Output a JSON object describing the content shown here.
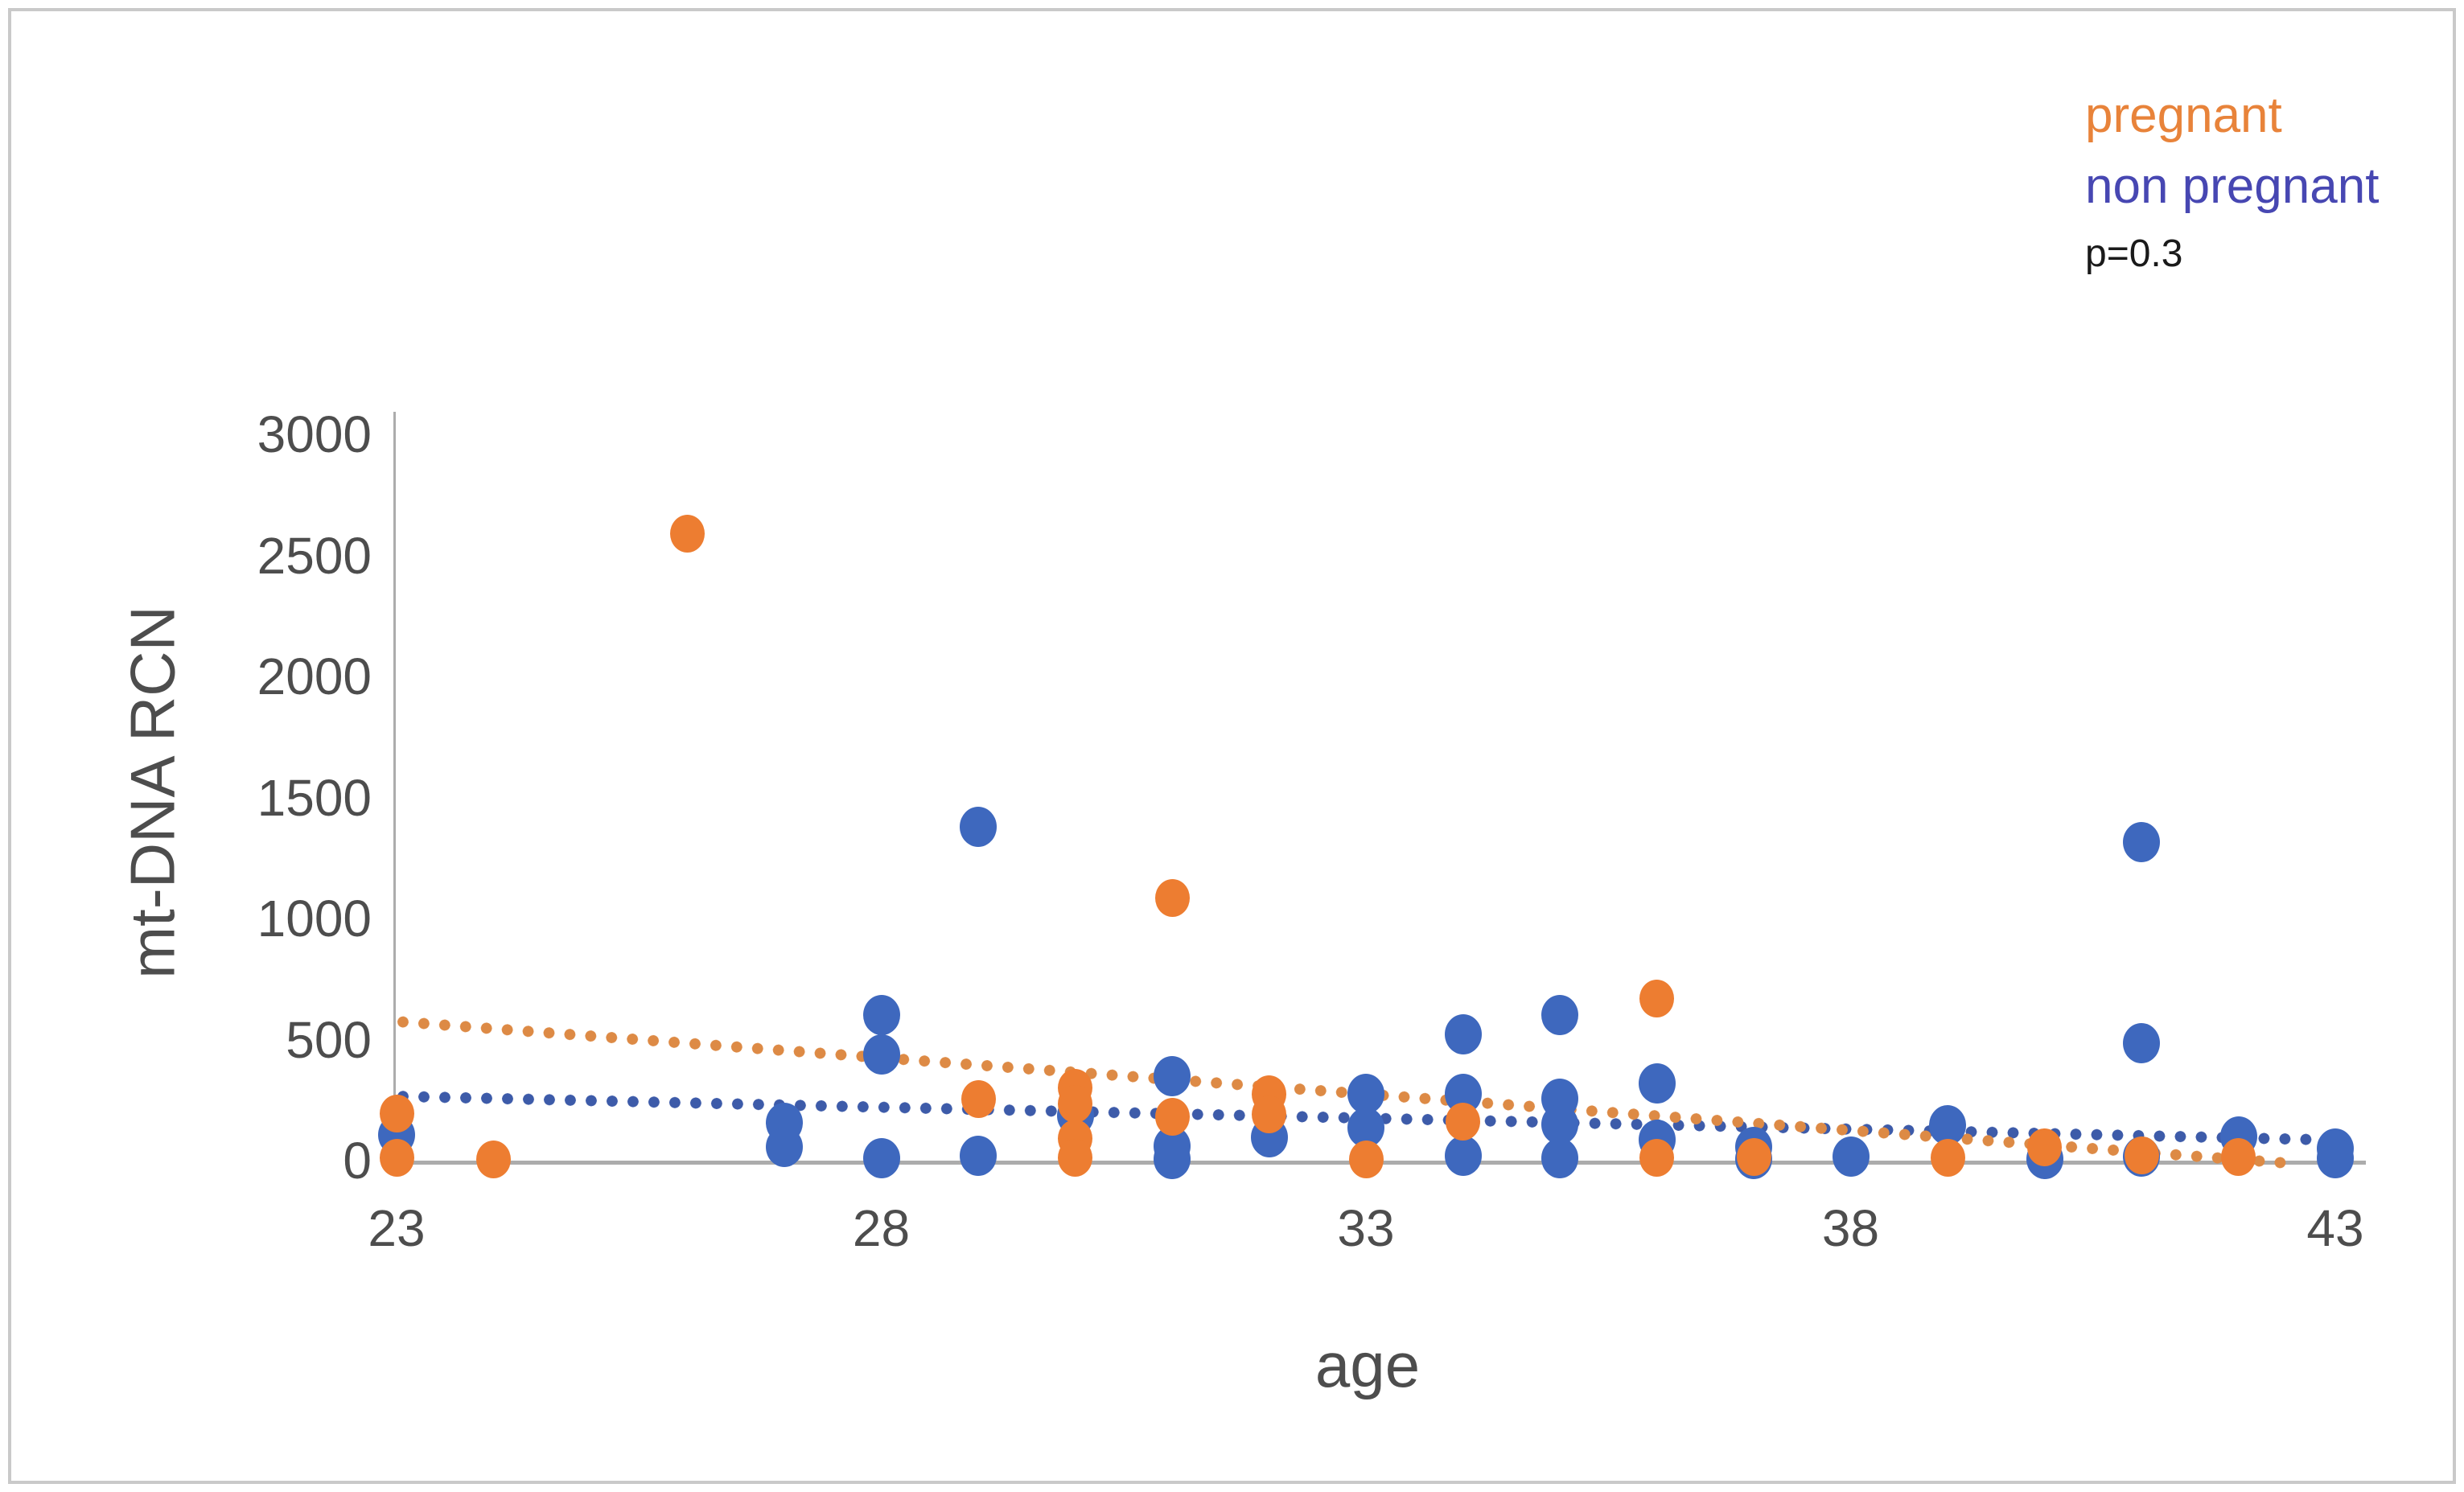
{
  "page": {
    "background": "#ffffff",
    "frame_border_color": "#c9c9c9",
    "axis_line_color": "#acacac",
    "tick_text_color": "#4d4d4d"
  },
  "legend": {
    "items": [
      {
        "label": "pregnant",
        "color": "#E8833A"
      },
      {
        "label": "non pregnant",
        "color": "#4747B2"
      }
    ],
    "p_value": "p=0.3",
    "p_value_color": "#1a1a1a"
  },
  "chart_data": {
    "type": "scatter",
    "title": "",
    "xlabel": "age",
    "ylabel": "mt-DNA RCN",
    "xlim": [
      23,
      43
    ],
    "ylim": [
      0,
      3000
    ],
    "x_ticks": [
      23,
      28,
      33,
      38,
      43
    ],
    "y_ticks": [
      0,
      500,
      1000,
      1500,
      2000,
      2500,
      3000
    ],
    "grid": false,
    "legend_position": "top-right",
    "annotation": "p=0.3",
    "series": [
      {
        "name": "non pregnant",
        "color": "#3E68BE",
        "trend_color": "#3D5BA9",
        "marker_size": 46,
        "points": [
          [
            23,
            105
          ],
          [
            27,
            155
          ],
          [
            27,
            55
          ],
          [
            28,
            600
          ],
          [
            28,
            440
          ],
          [
            28,
            10
          ],
          [
            29,
            1380
          ],
          [
            29,
            20
          ],
          [
            30,
            185
          ],
          [
            31,
            350
          ],
          [
            31,
            60
          ],
          [
            31,
            5
          ],
          [
            32,
            95
          ],
          [
            33,
            275
          ],
          [
            33,
            135
          ],
          [
            34,
            520
          ],
          [
            34,
            275
          ],
          [
            34,
            20
          ],
          [
            35,
            600
          ],
          [
            35,
            255
          ],
          [
            35,
            150
          ],
          [
            35,
            10
          ],
          [
            36,
            320
          ],
          [
            36,
            85
          ],
          [
            37,
            55
          ],
          [
            37,
            5
          ],
          [
            38,
            15
          ],
          [
            39,
            145
          ],
          [
            40,
            5
          ],
          [
            41,
            1315
          ],
          [
            41,
            485
          ],
          [
            41,
            15
          ],
          [
            42,
            100
          ],
          [
            43,
            50
          ],
          [
            43,
            10
          ]
        ],
        "trend": {
          "x1": 23,
          "y1": 265,
          "x2": 42.9,
          "y2": 85
        }
      },
      {
        "name": "pregnant",
        "color": "#ED7D31",
        "trend_color": "#DD8A45",
        "marker_size": 43,
        "points": [
          [
            23,
            195
          ],
          [
            23,
            10
          ],
          [
            24,
            5
          ],
          [
            26,
            2590
          ],
          [
            29,
            255
          ],
          [
            30,
            300
          ],
          [
            30,
            235
          ],
          [
            30,
            90
          ],
          [
            30,
            10
          ],
          [
            31,
            1085
          ],
          [
            31,
            180
          ],
          [
            32,
            275
          ],
          [
            32,
            190
          ],
          [
            33,
            5
          ],
          [
            34,
            160
          ],
          [
            36,
            670
          ],
          [
            36,
            10
          ],
          [
            37,
            15
          ],
          [
            39,
            10
          ],
          [
            40,
            55
          ],
          [
            41,
            20
          ],
          [
            42,
            15
          ]
        ],
        "trend": {
          "x1": 23,
          "y1": 575,
          "x2": 42.5,
          "y2": -10
        }
      }
    ]
  }
}
